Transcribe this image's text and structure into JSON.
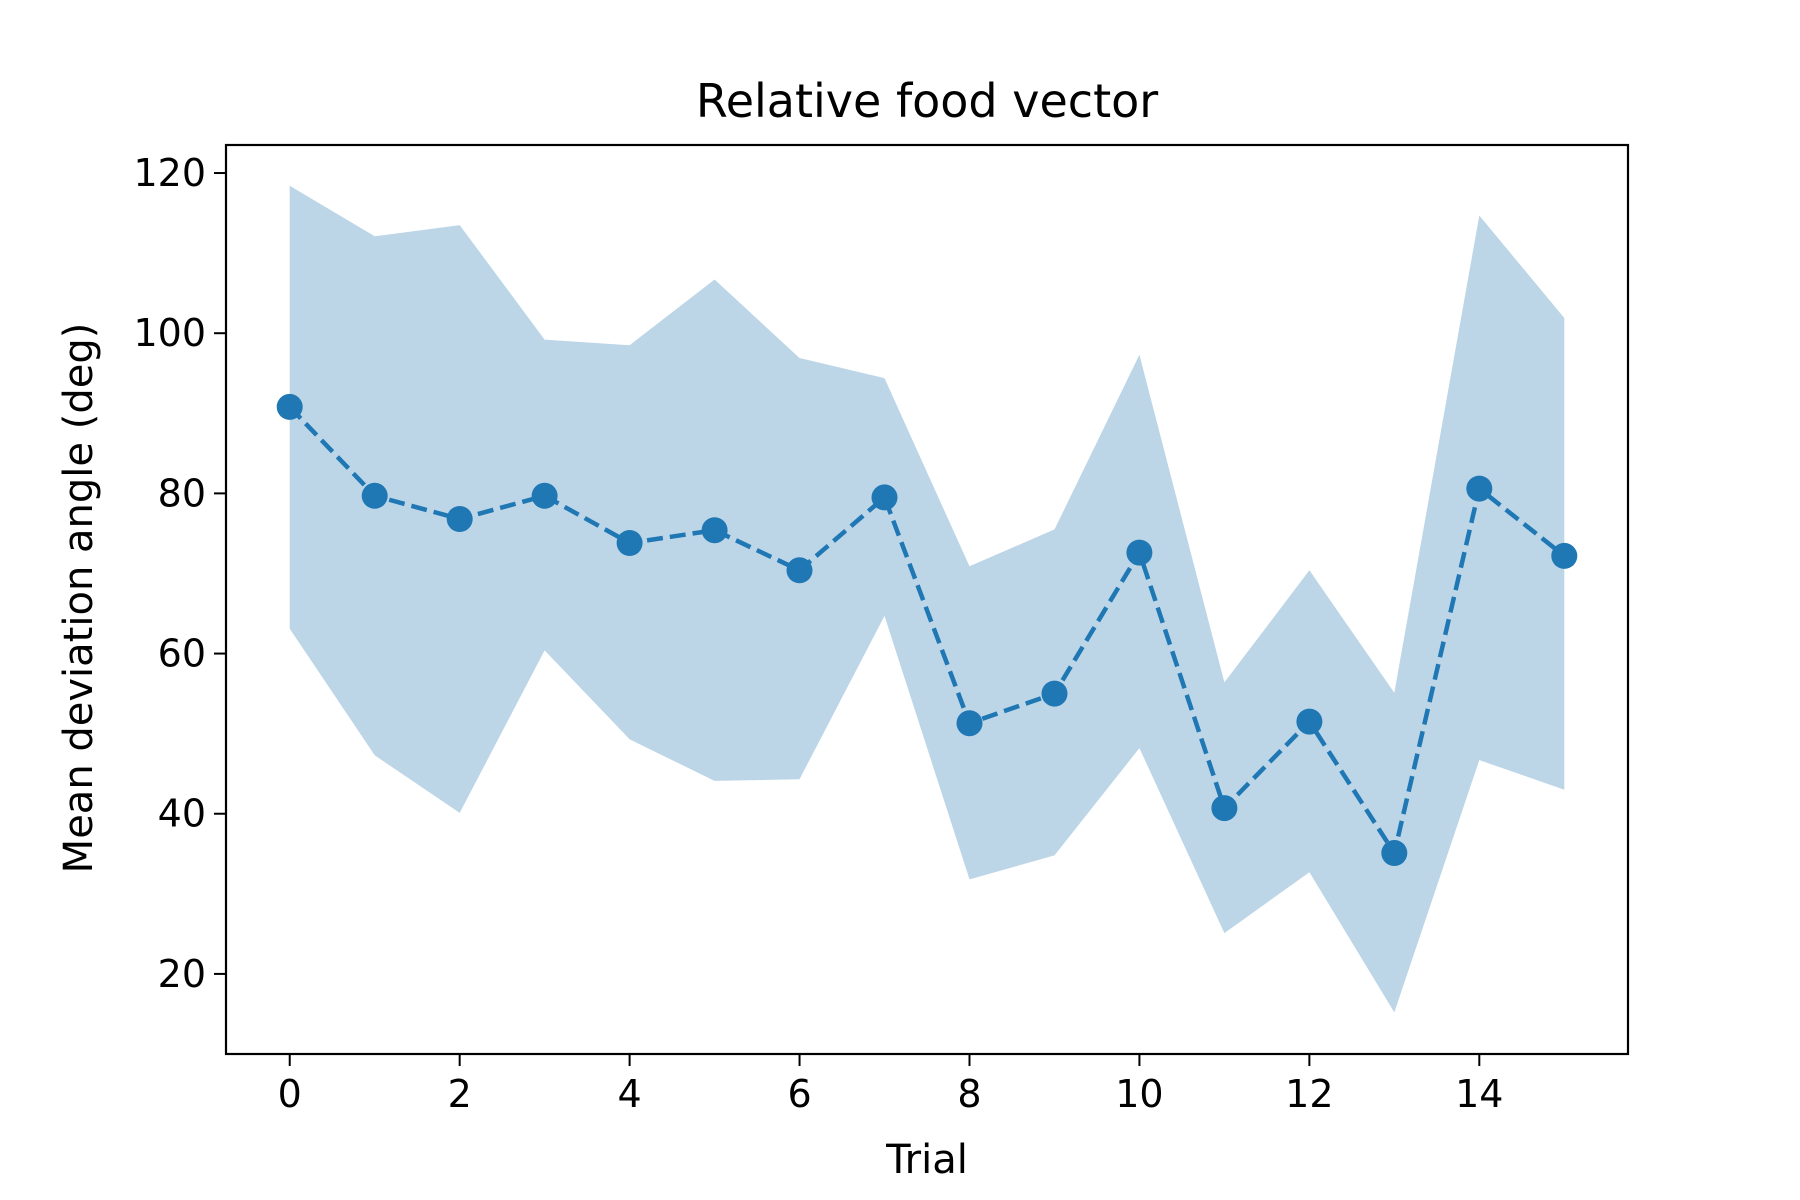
{
  "chart_data": {
    "type": "line",
    "title": "Relative food vector",
    "xlabel": "Trial",
    "ylabel": "Mean deviation angle (deg)",
    "x": [
      0,
      1,
      2,
      3,
      4,
      5,
      6,
      7,
      8,
      9,
      10,
      11,
      12,
      13,
      14,
      15
    ],
    "series": [
      {
        "values": [
          90.8,
          79.7,
          76.8,
          79.7,
          73.8,
          75.4,
          70.4,
          79.5,
          51.3,
          55.0,
          72.6,
          40.7,
          51.5,
          35.1,
          80.6,
          72.2
        ],
        "band_upper": [
          118.4,
          112.1,
          113.5,
          99.2,
          98.5,
          106.7,
          96.9,
          94.4,
          70.9,
          75.5,
          97.3,
          56.4,
          70.4,
          55.1,
          114.7,
          101.9
        ],
        "band_lower": [
          63.1,
          47.3,
          40.1,
          60.4,
          49.3,
          44.1,
          44.3,
          64.7,
          31.8,
          34.8,
          48.2,
          25.1,
          32.7,
          15.2,
          46.7,
          43.0
        ]
      }
    ],
    "xlim": [
      -0.75,
      15.75
    ],
    "ylim": [
      10,
      123.5
    ],
    "xticks": [
      "0",
      "2",
      "4",
      "6",
      "8",
      "10",
      "12",
      "14"
    ],
    "yticks": [
      "20",
      "40",
      "60",
      "80",
      "100",
      "120"
    ],
    "colors": {
      "line": "#1f77b4",
      "band": "#bcd6e8"
    },
    "grid": false,
    "legend": "none"
  }
}
